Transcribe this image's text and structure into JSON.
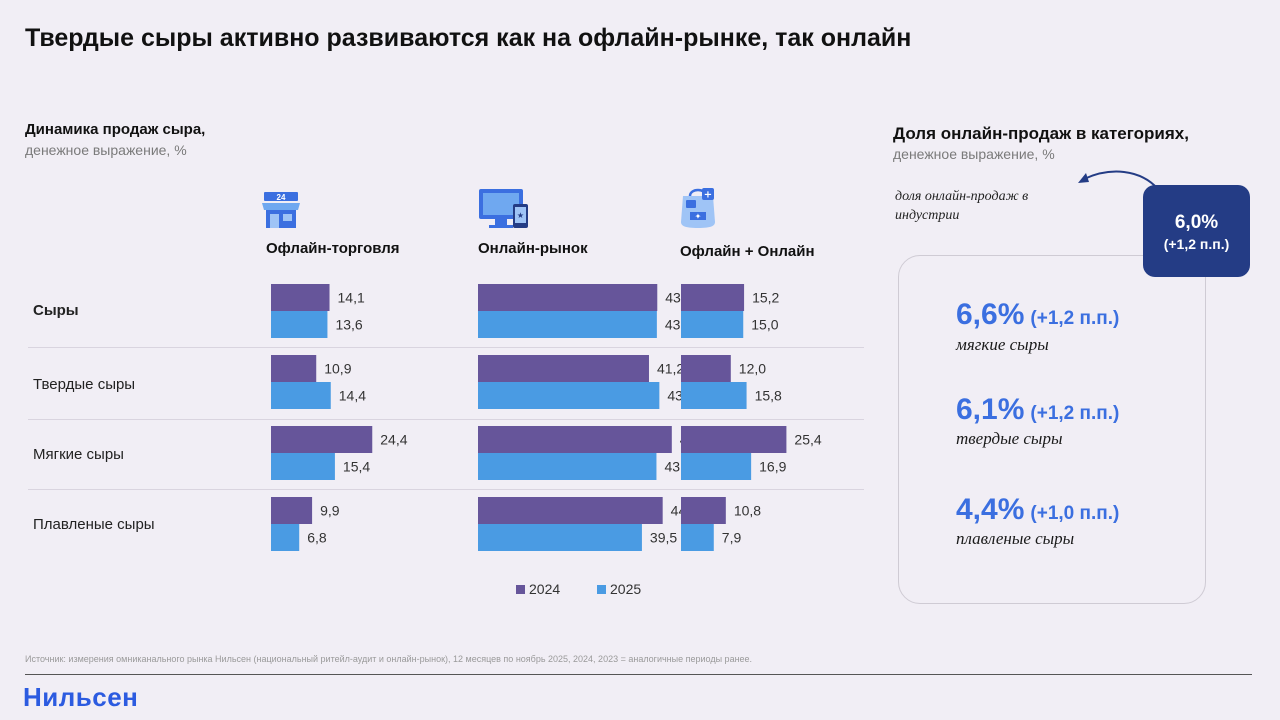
{
  "title": "Твердые сыры активно развиваются как на офлайн-рынке, так онлайн",
  "left_panel": {
    "heading": "Динамика продаж сыра,",
    "subheading": "денежное выражение, %"
  },
  "right_panel": {
    "heading": "Доля онлайн-продаж в категориях,",
    "subheading": "денежное выражение, %",
    "industry_note": "доля онлайн-продаж в индустрии",
    "industry_value": "6,0%",
    "industry_change": "(+1,2 п.п.)",
    "categories": [
      {
        "value": "6,6%",
        "change": "(+1,2 п.п.)",
        "name": "мягкие сыры"
      },
      {
        "value": "6,1%",
        "change": "(+1,2 п.п.)",
        "name": "твердые сыры"
      },
      {
        "value": "4,4%",
        "change": "(+1,0 п.п.)",
        "name": "плавленые сыры"
      }
    ]
  },
  "icons": [
    "store-24-icon",
    "monitor-icon",
    "shopping-bag-icon"
  ],
  "colors": {
    "2024": "#66559a",
    "2025": "#4a9be3",
    "accent": "#3b6fe0",
    "box": "#243c85"
  },
  "chart_data": {
    "type": "bar",
    "orientation": "horizontal",
    "panels": [
      "Офлайн-торговля",
      "Онлайн-рынок",
      "Офлайн + Онлайн"
    ],
    "categories": [
      "Сыры",
      "Твердые сыры",
      "Мягкие сыры",
      "Плавленые сыры"
    ],
    "series": [
      {
        "name": "2024",
        "values": [
          [
            14.1,
            10.9,
            24.4,
            9.9
          ],
          [
            43.2,
            41.2,
            46.7,
            44.5
          ],
          [
            15.2,
            12.0,
            25.4,
            10.8
          ]
        ]
      },
      {
        "name": "2025",
        "values": [
          [
            13.6,
            14.4,
            15.4,
            6.8
          ],
          [
            43.1,
            43.7,
            43.0,
            39.5
          ],
          [
            15.0,
            15.8,
            16.9,
            7.9
          ]
        ]
      }
    ],
    "value_labels": {
      "2024": [
        [
          "14,1",
          "10,9",
          "24,4",
          "9,9"
        ],
        [
          "43,2",
          "41,2",
          "46,7",
          "44,5"
        ],
        [
          "15,2",
          "12,0",
          "25,4",
          "10,8"
        ]
      ],
      "2025": [
        [
          "13,6",
          "14,4",
          "15,4",
          "6,8"
        ],
        [
          "43,1",
          "43,7",
          "43,0",
          "39,5"
        ],
        [
          "15,0",
          "15,8",
          "16,9",
          "7,9"
        ]
      ]
    },
    "legend": [
      "2024",
      "2025"
    ],
    "legend_position": "bottom",
    "grid": false
  },
  "footer": {
    "source": "Источник: измерения омниканального рынка Нильсен (национальный ритейл-аудит и онлайн-рынок), 12 месяцев по ноябрь 2025, 2024, 2023 = аналогичные периоды ранее.",
    "brand": "Нильсен"
  }
}
